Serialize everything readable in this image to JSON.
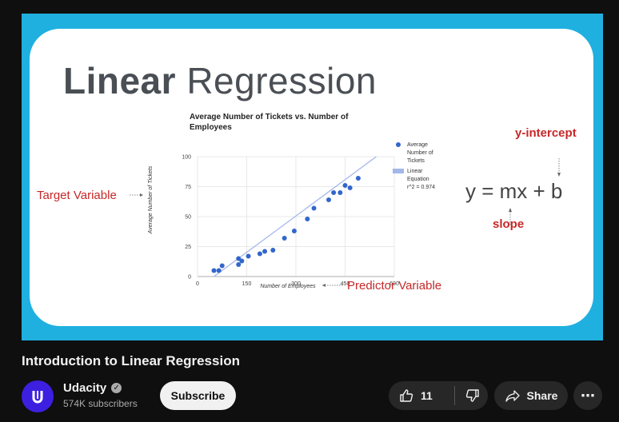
{
  "slide": {
    "title_bold": "Linear",
    "title_light": "Regression",
    "target_word": "Target",
    "variable_word": " Variable",
    "predictor_word": "Predictor",
    "predictor_variable_word": " Variable",
    "equation": "y = mx + b",
    "y_intercept_label": "y-intercept",
    "slope_label": "slope"
  },
  "chart_data": {
    "type": "scatter",
    "title": "Average Number of Tickets vs. Number of Employees",
    "title_line1": "Average Number of Tickets vs. Number of",
    "title_line2": "Employees",
    "xlabel": "Number of Employees",
    "ylabel": "Average Number of Tickets",
    "xlim": [
      0,
      600
    ],
    "ylim": [
      0,
      100
    ],
    "xticks": [
      "0",
      "150",
      "300",
      "450",
      "600"
    ],
    "yticks": [
      "0",
      "25",
      "50",
      "75",
      "100"
    ],
    "grid": true,
    "legend_position": "right",
    "legend": [
      {
        "label_lines": [
          "Average",
          "Number of",
          "Tickets"
        ],
        "kind": "points"
      },
      {
        "label_lines": [
          "Linear",
          "Equation",
          "r^2 = 0.974"
        ],
        "kind": "line"
      }
    ],
    "series": [
      {
        "name": "Average Number of Tickets",
        "color": "#3366cc",
        "points": [
          [
            50,
            5
          ],
          [
            65,
            5
          ],
          [
            75,
            9
          ],
          [
            125,
            10
          ],
          [
            125,
            15
          ],
          [
            135,
            13
          ],
          [
            155,
            17
          ],
          [
            190,
            19
          ],
          [
            205,
            21
          ],
          [
            230,
            22
          ],
          [
            265,
            32
          ],
          [
            295,
            38
          ],
          [
            335,
            48
          ],
          [
            355,
            57
          ],
          [
            400,
            64
          ],
          [
            415,
            70
          ],
          [
            435,
            70
          ],
          [
            450,
            76
          ],
          [
            465,
            74
          ],
          [
            490,
            82
          ]
        ]
      }
    ],
    "trendline": {
      "name": "Linear Equation",
      "color": "#a3b7e8",
      "x": [
        50,
        545
      ],
      "y": [
        0,
        100
      ],
      "r2": 0.974
    }
  },
  "video": {
    "title": "Introduction to Linear Regression",
    "channel_name": "Udacity",
    "subscribers": "574K subscribers",
    "subscribe_label": "Subscribe",
    "like_count": "11",
    "share_label": "Share",
    "more_glyph": "⋯"
  },
  "colors": {
    "player_bg": "#1fb0e0",
    "accent_red": "#c62828",
    "avatar_bg": "#3d1fe0",
    "page_bg": "#0f0f0f"
  }
}
